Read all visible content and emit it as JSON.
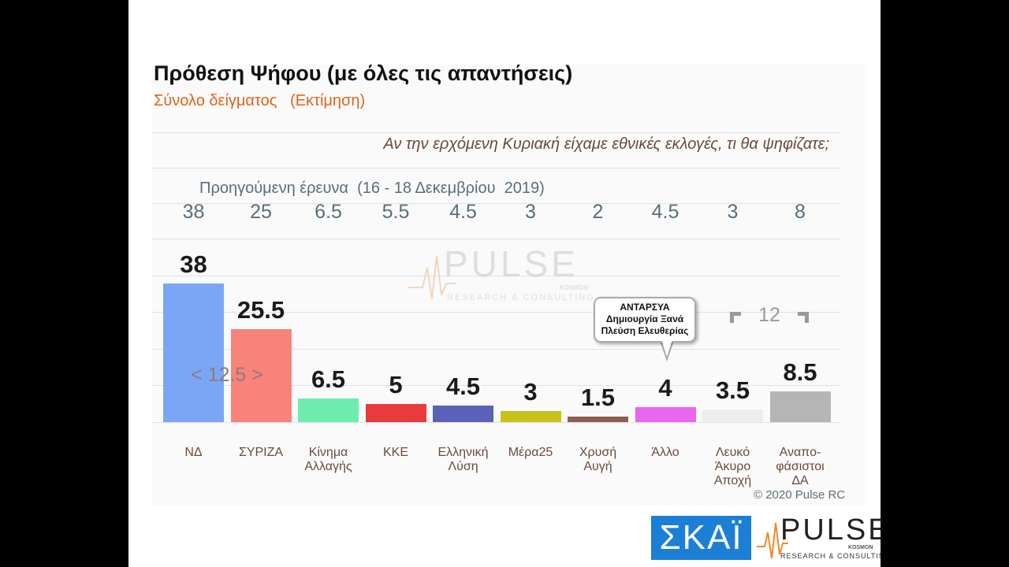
{
  "title": "Πρόθεση Ψήφου (με όλες τις απαντήσεις)",
  "subtitle": "Σύνολο δείγματος   (Εκτίμηση)",
  "question": "Αν την ερχόμενη Κυριακή είχαμε εθνικές εκλογές, τι θα ψηφίζατε;",
  "previous_survey_label": "Προηγούμενη έρευνα  (16 - 18 Δεκεμβρίου  2019)",
  "gap_nd_syriza": "< 12.5 >",
  "gap_bracket": "12",
  "callout": {
    "line1": "ΑΝΤΑΡΣΥΑ",
    "line2": "Δημιουργία Ξανά",
    "line3": "Πλεύση Ελευθερίας"
  },
  "copyright": "© 2020 Pulse RC",
  "watermark": {
    "name": "PULSE",
    "tagline": "RESEARCH & CONSULTING",
    "partner": "KOSMON"
  },
  "logos": {
    "skai": "ΣΚΑΪ",
    "pulse_name": "PULSE",
    "pulse_tagline": "RESEARCH & CONSULTING",
    "pulse_partner": "KOSMON"
  },
  "chart_data": {
    "type": "bar",
    "title": "Πρόθεση Ψήφου (με όλες τις απαντήσεις)",
    "categories": [
      "ΝΔ",
      "ΣΥΡΙΖΑ",
      "Κίνημα Αλλαγής",
      "ΚΚΕ",
      "Ελληνική Λύση",
      "Μέρα25",
      "Χρυσή Αυγή",
      "Άλλο",
      "Λευκό Άκυρο Αποχή",
      "Αναπο-φάσιστοι ΔΑ"
    ],
    "category_lines": [
      [
        "ΝΔ"
      ],
      [
        "ΣΥΡΙΖΑ"
      ],
      [
        "Κίνημα",
        "Αλλαγής"
      ],
      [
        "ΚΚΕ"
      ],
      [
        "Ελληνική",
        "Λύση"
      ],
      [
        "Μέρα25"
      ],
      [
        "Χρυσή",
        "Αυγή"
      ],
      [
        "Άλλο"
      ],
      [
        "Λευκό",
        "Άκυρο",
        "Αποχή"
      ],
      [
        "Αναπο-",
        "φάσιστοι",
        "ΔΑ"
      ]
    ],
    "values": [
      38,
      25.5,
      6.5,
      5,
      4.5,
      3,
      1.5,
      4,
      3.5,
      8.5
    ],
    "value_labels": [
      "38",
      "25.5",
      "6.5",
      "5",
      "4.5",
      "3",
      "1.5",
      "4",
      "3.5",
      "8.5"
    ],
    "previous_values": [
      38,
      25,
      6.5,
      5.5,
      4.5,
      3,
      2,
      4.5,
      3,
      8
    ],
    "previous_labels": [
      "38",
      "25",
      "6.5",
      "5.5",
      "4.5",
      "3",
      "2",
      "4.5",
      "3",
      "8"
    ],
    "colors": [
      "#7ba6f5",
      "#f7837b",
      "#6eecb0",
      "#e83b3b",
      "#5b60b8",
      "#c7c21c",
      "#8b5f4e",
      "#e966ee",
      "#ededed",
      "#b5b5b5"
    ],
    "ylim": [
      0,
      40
    ]
  }
}
